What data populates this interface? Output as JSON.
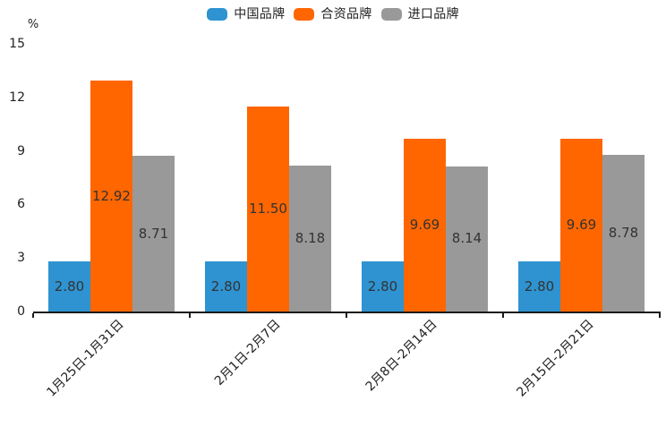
{
  "chart_data": {
    "type": "bar",
    "title": "",
    "ylabel": "%",
    "xlabel": "",
    "categories": [
      "1月25日-1月31日",
      "2月1日-2月7日",
      "2月8日-2月14日",
      "2月15日-2月21日"
    ],
    "series": [
      {
        "name": "中国品牌",
        "color": "#2E93D0",
        "values": [
          2.8,
          2.8,
          2.8,
          2.8
        ]
      },
      {
        "name": "合资品牌",
        "color": "#FF6600",
        "values": [
          12.92,
          11.5,
          9.69,
          9.69
        ]
      },
      {
        "name": "进口品牌",
        "color": "#999999",
        "values": [
          8.71,
          8.18,
          8.14,
          8.78
        ]
      }
    ],
    "ylim": [
      0,
      15
    ],
    "yticks": [
      0,
      3,
      6,
      9,
      12,
      15
    ],
    "grid": false,
    "legend_position": "top-center",
    "x_tick_rotation_deg": 45,
    "value_labels": "inside-center",
    "value_label_decimals": 2,
    "axis_color": "#1a1a1a",
    "value_label_color": "#333333",
    "background_color": "#ffffff"
  }
}
